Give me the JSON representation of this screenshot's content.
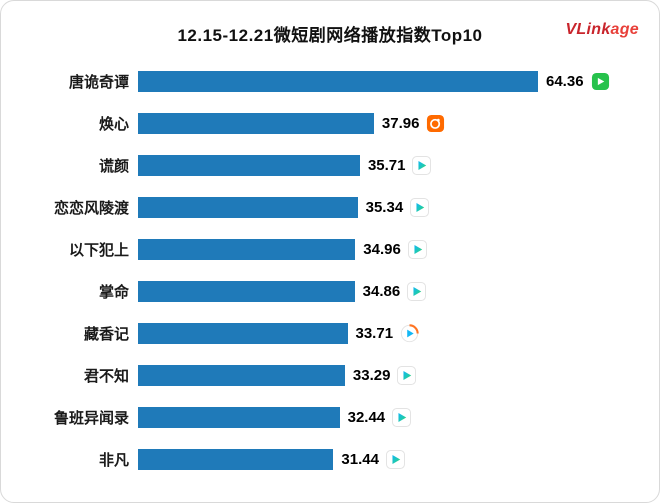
{
  "title": "12.15-12.21微短剧网络播放指数Top10",
  "logo": {
    "part1": "VLink",
    "part2": "age"
  },
  "chart_data": {
    "type": "bar",
    "orientation": "horizontal",
    "title": "12.15-12.21微短剧网络播放指数Top10",
    "xlim": [
      0,
      70
    ],
    "bar_color": "#1f7ab9",
    "legend": "none",
    "grid": false,
    "categories": [
      "唐诡奇谭",
      "焕心",
      "谎颜",
      "恋恋风陵渡",
      "以下犯上",
      "掌命",
      "藏香记",
      "君不知",
      "鲁班异闻录",
      "非凡"
    ],
    "values": [
      64.36,
      37.96,
      35.71,
      35.34,
      34.96,
      34.86,
      33.71,
      33.29,
      32.44,
      31.44
    ],
    "platform_icons": [
      "iqiyi",
      "mango",
      "tencent",
      "tencent",
      "tencent",
      "tencent",
      "play-circle",
      "tencent",
      "tencent",
      "tencent"
    ],
    "rows": [
      {
        "label": "唐诡奇谭",
        "value": 64.36,
        "value_str": "64.36",
        "platform": "iqiyi"
      },
      {
        "label": "焕心",
        "value": 37.96,
        "value_str": "37.96",
        "platform": "mango"
      },
      {
        "label": "谎颜",
        "value": 35.71,
        "value_str": "35.71",
        "platform": "tencent"
      },
      {
        "label": "恋恋风陵渡",
        "value": 35.34,
        "value_str": "35.34",
        "platform": "tencent"
      },
      {
        "label": "以下犯上",
        "value": 34.96,
        "value_str": "34.96",
        "platform": "tencent"
      },
      {
        "label": "掌命",
        "value": 34.86,
        "value_str": "34.86",
        "platform": "tencent"
      },
      {
        "label": "藏香记",
        "value": 33.71,
        "value_str": "33.71",
        "platform": "play-circle"
      },
      {
        "label": "君不知",
        "value": 33.29,
        "value_str": "33.29",
        "platform": "tencent"
      },
      {
        "label": "鲁班异闻录",
        "value": 32.44,
        "value_str": "32.44",
        "platform": "tencent"
      },
      {
        "label": "非凡",
        "value": 31.44,
        "value_str": "31.44",
        "platform": "tencent"
      }
    ]
  }
}
